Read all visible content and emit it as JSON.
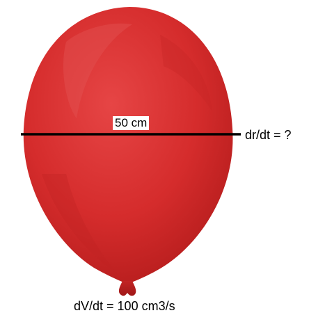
{
  "labels": {
    "diameter": "50 cm",
    "dr_dt": "dr/dt = ?",
    "dv_dt": "dV/dt = 100 cm3/s"
  },
  "colors": {
    "balloon": "#d42a2a",
    "balloon_dark": "#b81d1d",
    "highlight": "#e65050",
    "line": "#000000",
    "text": "#000000"
  }
}
